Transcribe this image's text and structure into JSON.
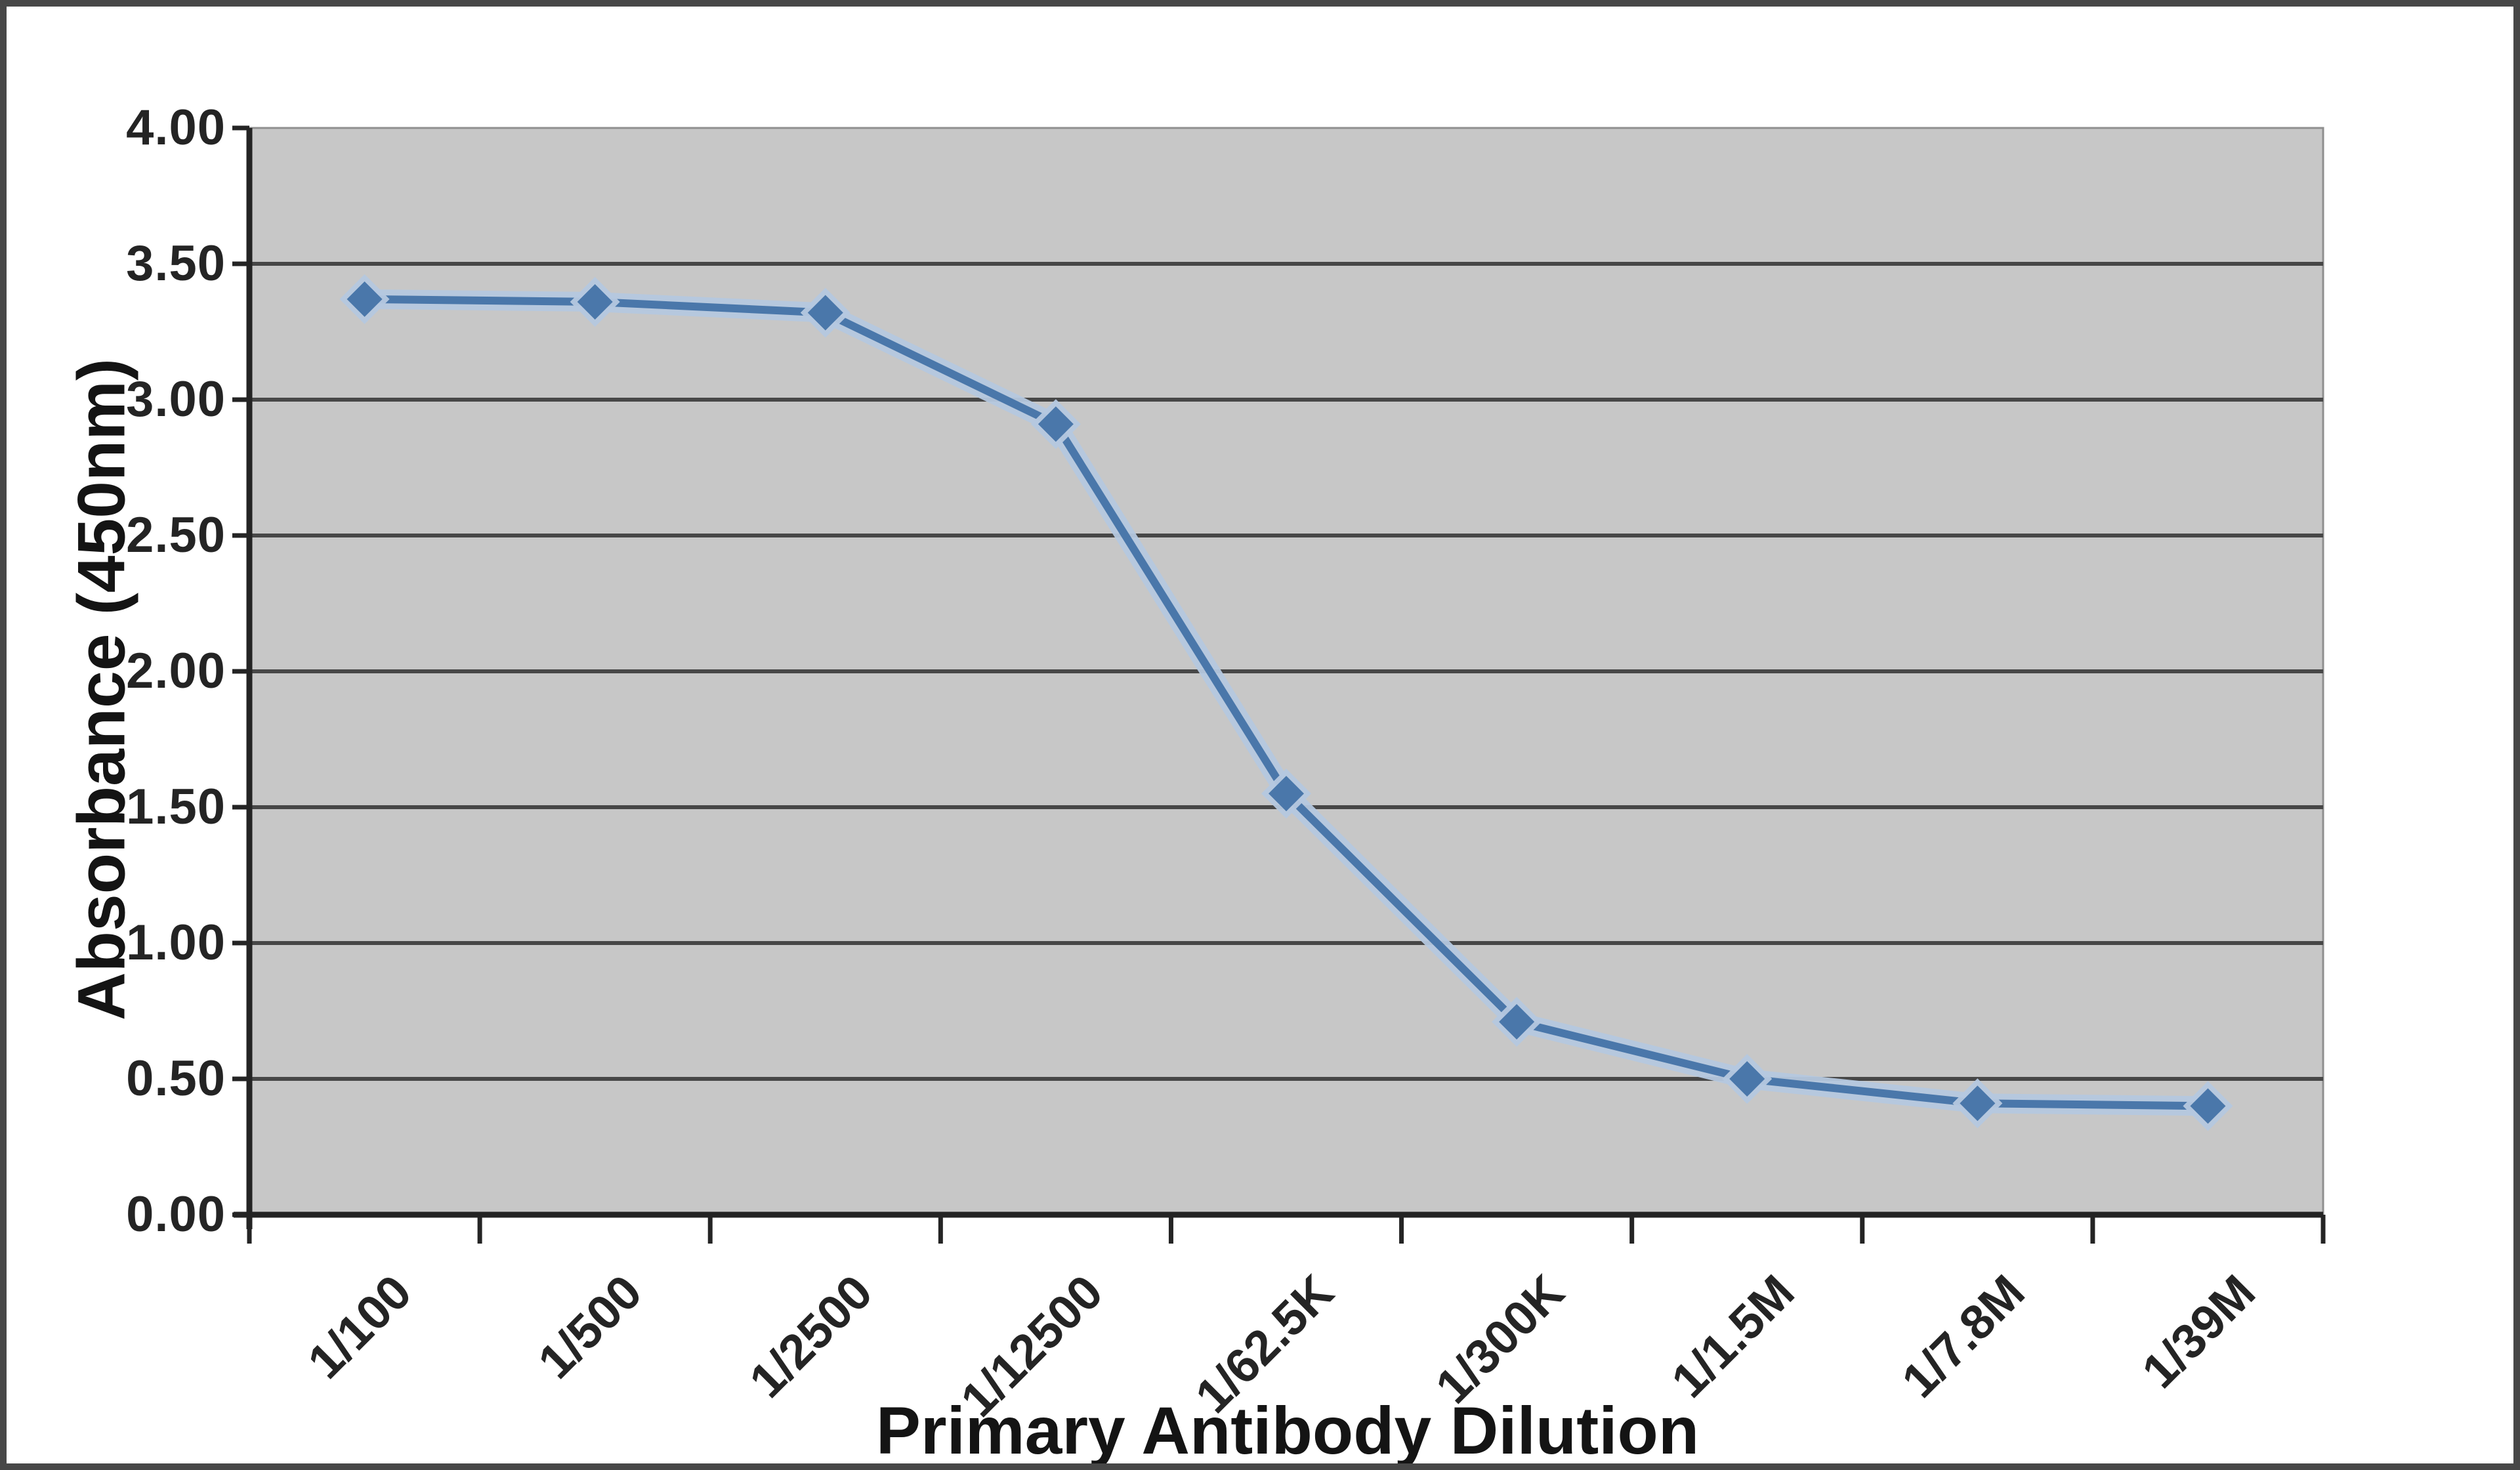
{
  "chart_data": {
    "type": "line",
    "title": "",
    "xlabel": "Primary Antibody Dilution",
    "ylabel": "Absorbance (450nm)",
    "categories": [
      "1/100",
      "1/500",
      "1/2500",
      "1/12500",
      "1/62.5K",
      "1/300K",
      "1/1.5M",
      "1/7.8M",
      "1/39M"
    ],
    "series": [
      {
        "name": "Absorbance (450nm)",
        "values": [
          3.37,
          3.36,
          3.32,
          2.91,
          1.55,
          0.71,
          0.5,
          0.41,
          0.4
        ]
      }
    ],
    "ylim": [
      0.0,
      4.0
    ],
    "ytick_step": 0.5,
    "ytick_labels_top_to_bottom": [
      "4.00",
      "3.50",
      "3.00",
      "2.50",
      "2.00",
      "1.50",
      "1.00",
      "0.50",
      "0.00"
    ],
    "grid": "horizontal",
    "legend": "none",
    "marker": "diamond",
    "style": {
      "line_color": "#4a77aa",
      "line_halo_color": "#b5c8df",
      "plot_bg_color": "#c7c7c7",
      "gridline_color": "#474747",
      "plot_edge_color": "#8f8f8f",
      "axis_color": "#242424",
      "text_color": "#1c1c1c",
      "page_border_color": "#474747",
      "background_color": "#ffffff"
    }
  }
}
